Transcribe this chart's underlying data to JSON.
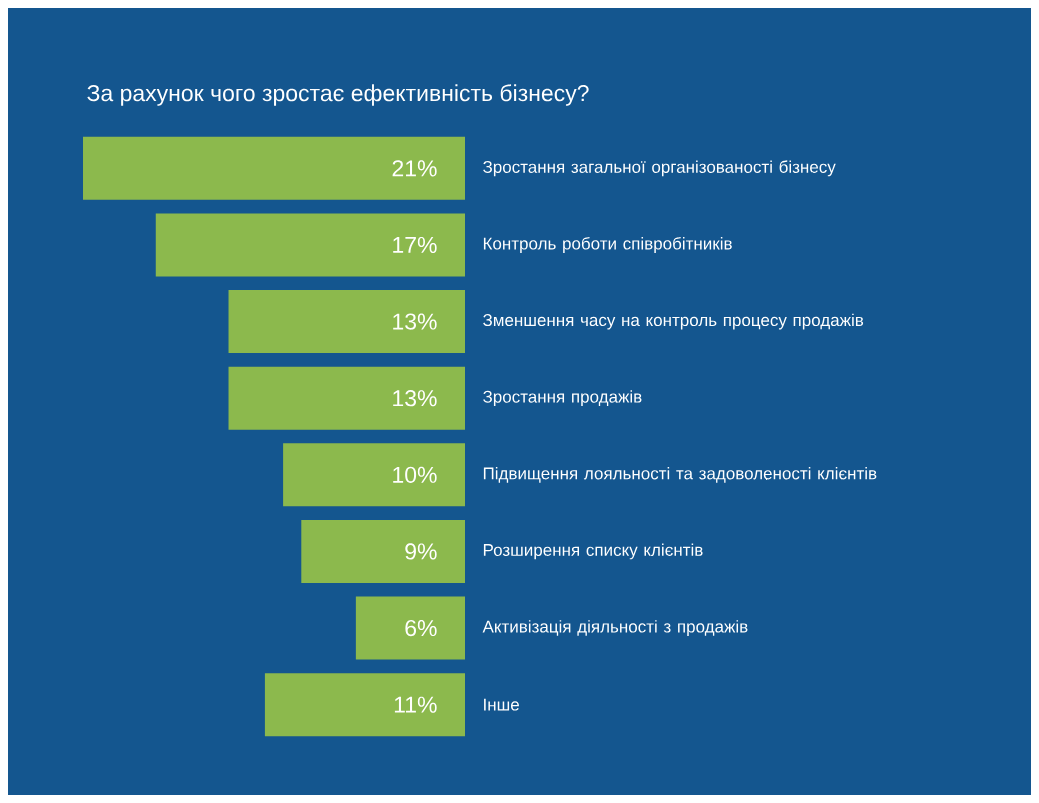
{
  "chart_data": {
    "type": "bar",
    "orientation": "horizontal",
    "title": "За рахунок чого зростає ефективність бізнесу?",
    "categories": [
      "Зростання загальної організованості бізнесу",
      "Контроль роботи співробітників",
      "Зменшення часу на контроль процесу продажів",
      "Зростання продажів",
      "Підвищення лояльності та задоволеності клієнтів",
      "Розширення списку клієнтів",
      "Активізація діяльності з продажів",
      "Інше"
    ],
    "values": [
      21,
      17,
      13,
      13,
      10,
      9,
      6,
      11
    ],
    "value_labels": [
      "21%",
      "17%",
      "13%",
      "13%",
      "10%",
      "9%",
      "6%",
      "11%"
    ],
    "color": "#8cb94d"
  }
}
